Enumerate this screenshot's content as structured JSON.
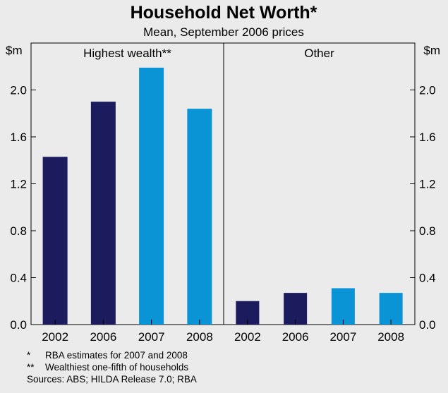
{
  "colors": {
    "background": "#ebebeb",
    "bar_dark": "#1b1b5e",
    "bar_light": "#0a94d6",
    "axis": "#000000"
  },
  "chart_data": {
    "type": "bar",
    "title": "Household Net Worth*",
    "subtitle": "Mean, September 2006 prices",
    "ylabel_left": "$m",
    "ylabel_right": "$m",
    "ylim": [
      0,
      2.4
    ],
    "yticks": [
      "0.0",
      "0.4",
      "0.8",
      "1.2",
      "1.6",
      "2.0"
    ],
    "grid": false,
    "legend": "none",
    "panels": [
      {
        "label": "Highest wealth**",
        "categories": [
          "2002",
          "2006",
          "2007",
          "2008"
        ],
        "values": [
          1.43,
          1.9,
          2.19,
          1.84
        ],
        "estimated": [
          false,
          false,
          true,
          true
        ]
      },
      {
        "label": "Other",
        "categories": [
          "2002",
          "2006",
          "2007",
          "2008"
        ],
        "values": [
          0.2,
          0.27,
          0.31,
          0.27
        ],
        "estimated": [
          false,
          false,
          true,
          true
        ]
      }
    ]
  },
  "notes": [
    {
      "marker": "*",
      "text": "RBA estimates for 2007 and 2008"
    },
    {
      "marker": "**",
      "text": "Wealthiest one-fifth of households"
    }
  ],
  "sources": "Sources: ABS; HILDA Release 7.0; RBA"
}
